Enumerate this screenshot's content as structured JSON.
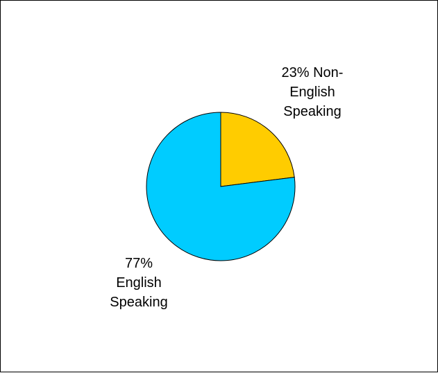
{
  "chart_data": {
    "type": "pie",
    "title": "",
    "slices": [
      {
        "label": "Non-English Speaking",
        "value": 23,
        "color": "#FFCC00",
        "label_lines": [
          "23% Non-",
          "English",
          "Speaking"
        ]
      },
      {
        "label": "English Speaking",
        "value": 77,
        "color": "#00CCFF",
        "label_lines": [
          "77%",
          "English",
          "Speaking"
        ]
      }
    ],
    "start_angle_deg": 0,
    "direction": "clockwise",
    "border_color": "#000000"
  }
}
